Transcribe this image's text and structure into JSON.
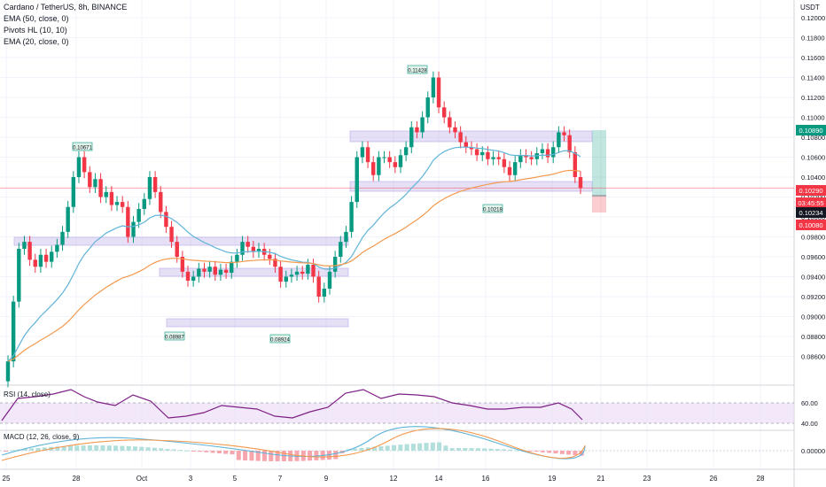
{
  "legend": [
    "Cardano / TetherUS, 8h, BINANCE",
    "EMA (50, close, 0)",
    "Pivots HL (10, 10)",
    "EMA (20, close, 0)"
  ],
  "currency": "USDT",
  "price_axis": [
    "0.12000",
    "0.11800",
    "0.11600",
    "0.11400",
    "0.11200",
    "0.11000",
    "0.10800",
    "0.10600",
    "0.10400",
    "0.10200",
    "0.10000",
    "0.09800",
    "0.09600",
    "0.09400",
    "0.09200",
    "0.09000",
    "0.08800",
    "0.08600"
  ],
  "price_badges": {
    "target": {
      "label": "0.10890",
      "color": "#089981"
    },
    "last": {
      "label": "0.10290",
      "color": "#f23645"
    },
    "countdown": {
      "label": "03:45:55",
      "color": "#f23645"
    },
    "ema": {
      "label": "0.10234",
      "color": "#131722"
    },
    "stop": {
      "label": "0.10080",
      "color": "#f23645"
    }
  },
  "pivot_labels": [
    {
      "label": "0.10671"
    },
    {
      "label": "0.08987"
    },
    {
      "label": "0.08924"
    },
    {
      "label": "0.11428"
    },
    {
      "label": "0.10218"
    }
  ],
  "rsi": {
    "label": "RSI (14, close)",
    "levels": [
      "60.00",
      "40.00"
    ]
  },
  "macd": {
    "label": "MACD (12, 26, close, 9)",
    "level": "0.00000"
  },
  "time_axis": [
    "25",
    "28",
    "Oct",
    "3",
    "5",
    "7",
    "9",
    "12",
    "14",
    "16",
    "19",
    "21",
    "23",
    "26",
    "28"
  ],
  "colors": {
    "up": "#089981",
    "down": "#f23645",
    "ema20": "#5fb4d8",
    "ema50": "#f3994e",
    "rsi": "#7e1f86",
    "zone": "#b7a6e6"
  }
}
